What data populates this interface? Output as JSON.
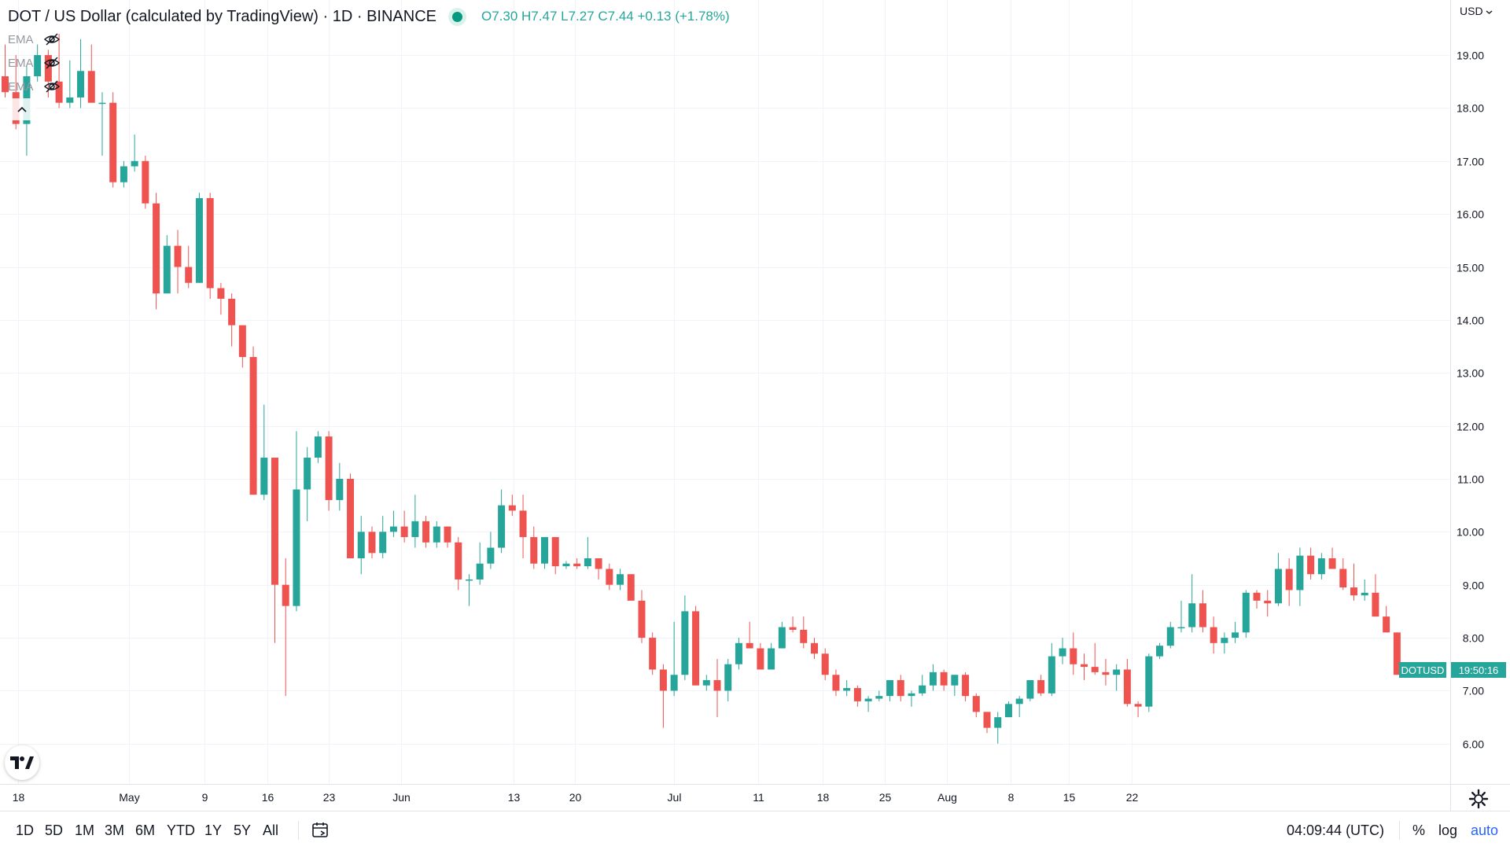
{
  "header": {
    "title": "DOT / US Dollar (calculated by TradingView) · 1D · BINANCE",
    "ohlc": "O7.30 H7.47 L7.27 C7.44 +0.13 (+1.78%)"
  },
  "indicators": [
    {
      "label": "EMA",
      "icon": "eye-crossed-icon"
    },
    {
      "label": "EMA",
      "icon": "eye-crossed-icon"
    },
    {
      "label": "EMA",
      "icon": "eye-crossed-icon"
    }
  ],
  "currency_selector": "USD",
  "price_label": {
    "symbol": "DOTUSD",
    "countdown": "19:50:16",
    "color": "#26a69a"
  },
  "bottom_bar": {
    "ranges": [
      "1D",
      "5D",
      "1M",
      "3M",
      "6M",
      "YTD",
      "1Y",
      "5Y",
      "All"
    ],
    "clock": "04:09:44 (UTC)",
    "options": [
      "%",
      "log",
      "auto"
    ]
  },
  "colors": {
    "up": "#26a69a",
    "down": "#ef5350",
    "grid": "#f0f3fa"
  },
  "chart_data": {
    "type": "candlestick",
    "symbol": "DOTUSD",
    "interval": "1D",
    "exchange": "BINANCE",
    "y_axis": {
      "ticks": [
        6,
        7,
        8,
        9,
        10,
        11,
        12,
        13,
        14,
        15,
        16,
        17,
        18,
        19
      ],
      "range": [
        5.24,
        20.04
      ],
      "side": "right"
    },
    "x_axis": {
      "labels": [
        "18",
        "May",
        "9",
        "16",
        "23",
        "Jun",
        "13",
        "20",
        "Jul",
        "11",
        "18",
        "25",
        "Aug",
        "8",
        "15",
        "22"
      ]
    },
    "grid": true,
    "candles": [
      {
        "o": 18.6,
        "h": 19.2,
        "l": 18.2,
        "c": 18.3
      },
      {
        "o": 18.3,
        "h": 19.0,
        "l": 17.6,
        "c": 17.7
      },
      {
        "o": 17.7,
        "h": 18.8,
        "l": 17.1,
        "c": 18.6
      },
      {
        "o": 18.6,
        "h": 19.2,
        "l": 18.5,
        "c": 19.0
      },
      {
        "o": 19.0,
        "h": 19.1,
        "l": 18.2,
        "c": 18.5
      },
      {
        "o": 18.5,
        "h": 19.4,
        "l": 18.0,
        "c": 18.1
      },
      {
        "o": 18.1,
        "h": 18.9,
        "l": 18.0,
        "c": 18.2
      },
      {
        "o": 18.2,
        "h": 19.3,
        "l": 18.0,
        "c": 18.7
      },
      {
        "o": 18.7,
        "h": 19.2,
        "l": 18.1,
        "c": 18.1
      },
      {
        "o": 18.1,
        "h": 18.3,
        "l": 17.1,
        "c": 18.1
      },
      {
        "o": 18.1,
        "h": 18.3,
        "l": 16.5,
        "c": 16.6
      },
      {
        "o": 16.6,
        "h": 17.0,
        "l": 16.5,
        "c": 16.9
      },
      {
        "o": 16.9,
        "h": 17.5,
        "l": 16.8,
        "c": 17.0
      },
      {
        "o": 17.0,
        "h": 17.1,
        "l": 16.1,
        "c": 16.2
      },
      {
        "o": 16.2,
        "h": 16.4,
        "l": 14.2,
        "c": 14.5
      },
      {
        "o": 14.5,
        "h": 15.6,
        "l": 14.5,
        "c": 15.4
      },
      {
        "o": 15.4,
        "h": 15.7,
        "l": 14.5,
        "c": 15.0
      },
      {
        "o": 15.0,
        "h": 15.4,
        "l": 14.6,
        "c": 14.7
      },
      {
        "o": 14.7,
        "h": 16.4,
        "l": 14.7,
        "c": 16.3
      },
      {
        "o": 16.3,
        "h": 16.4,
        "l": 14.4,
        "c": 14.6
      },
      {
        "o": 14.6,
        "h": 14.7,
        "l": 14.1,
        "c": 14.4
      },
      {
        "o": 14.4,
        "h": 14.5,
        "l": 13.5,
        "c": 13.9
      },
      {
        "o": 13.9,
        "h": 13.9,
        "l": 13.1,
        "c": 13.3
      },
      {
        "o": 13.3,
        "h": 13.5,
        "l": 10.7,
        "c": 10.7
      },
      {
        "o": 10.7,
        "h": 12.4,
        "l": 10.6,
        "c": 11.4
      },
      {
        "o": 11.4,
        "h": 11.4,
        "l": 7.9,
        "c": 9.0
      },
      {
        "o": 9.0,
        "h": 9.5,
        "l": 6.9,
        "c": 8.6
      },
      {
        "o": 8.6,
        "h": 11.9,
        "l": 8.5,
        "c": 10.8
      },
      {
        "o": 10.8,
        "h": 11.6,
        "l": 10.2,
        "c": 11.4
      },
      {
        "o": 11.4,
        "h": 11.9,
        "l": 11.3,
        "c": 11.8
      },
      {
        "o": 11.8,
        "h": 11.9,
        "l": 10.4,
        "c": 10.6
      },
      {
        "o": 10.6,
        "h": 11.3,
        "l": 10.4,
        "c": 11.0
      },
      {
        "o": 11.0,
        "h": 11.1,
        "l": 9.5,
        "c": 9.5
      },
      {
        "o": 9.5,
        "h": 10.3,
        "l": 9.2,
        "c": 10.0
      },
      {
        "o": 10.0,
        "h": 10.1,
        "l": 9.5,
        "c": 9.6
      },
      {
        "o": 9.6,
        "h": 10.3,
        "l": 9.5,
        "c": 10.0
      },
      {
        "o": 10.0,
        "h": 10.4,
        "l": 9.9,
        "c": 10.1
      },
      {
        "o": 10.1,
        "h": 10.4,
        "l": 9.8,
        "c": 9.9
      },
      {
        "o": 9.9,
        "h": 10.7,
        "l": 9.7,
        "c": 10.2
      },
      {
        "o": 10.2,
        "h": 10.3,
        "l": 9.7,
        "c": 9.8
      },
      {
        "o": 9.8,
        "h": 10.2,
        "l": 9.7,
        "c": 10.1
      },
      {
        "o": 10.1,
        "h": 10.1,
        "l": 9.7,
        "c": 9.8
      },
      {
        "o": 9.8,
        "h": 9.9,
        "l": 8.9,
        "c": 9.1
      },
      {
        "o": 9.1,
        "h": 9.2,
        "l": 8.6,
        "c": 9.1
      },
      {
        "o": 9.1,
        "h": 9.8,
        "l": 9.0,
        "c": 9.4
      },
      {
        "o": 9.4,
        "h": 10.0,
        "l": 9.3,
        "c": 9.7
      },
      {
        "o": 9.7,
        "h": 10.8,
        "l": 9.6,
        "c": 10.5
      },
      {
        "o": 10.5,
        "h": 10.7,
        "l": 10.3,
        "c": 10.4
      },
      {
        "o": 10.4,
        "h": 10.7,
        "l": 9.5,
        "c": 9.9
      },
      {
        "o": 9.9,
        "h": 10.1,
        "l": 9.3,
        "c": 9.4
      },
      {
        "o": 9.4,
        "h": 9.9,
        "l": 9.3,
        "c": 9.9
      },
      {
        "o": 9.9,
        "h": 9.9,
        "l": 9.2,
        "c": 9.35
      },
      {
        "o": 9.35,
        "h": 9.45,
        "l": 9.3,
        "c": 9.4
      },
      {
        "o": 9.4,
        "h": 9.5,
        "l": 9.3,
        "c": 9.35
      },
      {
        "o": 9.35,
        "h": 9.9,
        "l": 9.3,
        "c": 9.5
      },
      {
        "o": 9.5,
        "h": 9.5,
        "l": 9.1,
        "c": 9.3
      },
      {
        "o": 9.3,
        "h": 9.4,
        "l": 8.9,
        "c": 9.0
      },
      {
        "o": 9.0,
        "h": 9.3,
        "l": 8.9,
        "c": 9.2
      },
      {
        "o": 9.2,
        "h": 9.2,
        "l": 8.7,
        "c": 8.7
      },
      {
        "o": 8.7,
        "h": 8.9,
        "l": 7.9,
        "c": 8.0
      },
      {
        "o": 8.0,
        "h": 8.1,
        "l": 7.3,
        "c": 7.4
      },
      {
        "o": 7.4,
        "h": 7.5,
        "l": 6.3,
        "c": 7.0
      },
      {
        "o": 7.0,
        "h": 8.3,
        "l": 6.9,
        "c": 7.3
      },
      {
        "o": 7.3,
        "h": 8.8,
        "l": 7.2,
        "c": 8.5
      },
      {
        "o": 8.5,
        "h": 8.6,
        "l": 7.1,
        "c": 7.1
      },
      {
        "o": 7.1,
        "h": 7.3,
        "l": 7.0,
        "c": 7.2
      },
      {
        "o": 7.2,
        "h": 7.6,
        "l": 6.5,
        "c": 7.0
      },
      {
        "o": 7.0,
        "h": 7.6,
        "l": 6.8,
        "c": 7.5
      },
      {
        "o": 7.5,
        "h": 8.0,
        "l": 7.4,
        "c": 7.9
      },
      {
        "o": 7.9,
        "h": 8.3,
        "l": 7.8,
        "c": 7.8
      },
      {
        "o": 7.8,
        "h": 7.9,
        "l": 7.4,
        "c": 7.4
      },
      {
        "o": 7.4,
        "h": 7.9,
        "l": 7.4,
        "c": 7.8
      },
      {
        "o": 7.8,
        "h": 8.3,
        "l": 7.8,
        "c": 8.2
      },
      {
        "o": 8.2,
        "h": 8.4,
        "l": 8.1,
        "c": 8.15
      },
      {
        "o": 8.15,
        "h": 8.4,
        "l": 7.8,
        "c": 7.9
      },
      {
        "o": 7.9,
        "h": 8.0,
        "l": 7.6,
        "c": 7.7
      },
      {
        "o": 7.7,
        "h": 7.8,
        "l": 7.2,
        "c": 7.3
      },
      {
        "o": 7.3,
        "h": 7.4,
        "l": 6.9,
        "c": 7.0
      },
      {
        "o": 7.0,
        "h": 7.2,
        "l": 6.9,
        "c": 7.05
      },
      {
        "o": 7.05,
        "h": 7.1,
        "l": 6.7,
        "c": 6.8
      },
      {
        "o": 6.8,
        "h": 6.9,
        "l": 6.6,
        "c": 6.85
      },
      {
        "o": 6.85,
        "h": 7.0,
        "l": 6.8,
        "c": 6.9
      },
      {
        "o": 6.9,
        "h": 7.2,
        "l": 6.8,
        "c": 7.2
      },
      {
        "o": 7.2,
        "h": 7.3,
        "l": 6.8,
        "c": 6.9
      },
      {
        "o": 6.9,
        "h": 7.0,
        "l": 6.7,
        "c": 6.95
      },
      {
        "o": 6.95,
        "h": 7.3,
        "l": 6.9,
        "c": 7.1
      },
      {
        "o": 7.1,
        "h": 7.5,
        "l": 7.0,
        "c": 7.35
      },
      {
        "o": 7.35,
        "h": 7.4,
        "l": 7.0,
        "c": 7.1
      },
      {
        "o": 7.1,
        "h": 7.3,
        "l": 6.9,
        "c": 7.3
      },
      {
        "o": 7.3,
        "h": 7.35,
        "l": 6.8,
        "c": 6.9
      },
      {
        "o": 6.9,
        "h": 6.95,
        "l": 6.5,
        "c": 6.6
      },
      {
        "o": 6.6,
        "h": 6.6,
        "l": 6.2,
        "c": 6.3
      },
      {
        "o": 6.3,
        "h": 6.6,
        "l": 6.0,
        "c": 6.5
      },
      {
        "o": 6.5,
        "h": 6.8,
        "l": 6.5,
        "c": 6.75
      },
      {
        "o": 6.75,
        "h": 6.9,
        "l": 6.5,
        "c": 6.85
      },
      {
        "o": 6.85,
        "h": 7.2,
        "l": 6.8,
        "c": 7.2
      },
      {
        "o": 7.2,
        "h": 7.3,
        "l": 6.9,
        "c": 6.95
      },
      {
        "o": 6.95,
        "h": 7.9,
        "l": 6.9,
        "c": 7.65
      },
      {
        "o": 7.65,
        "h": 8.0,
        "l": 7.5,
        "c": 7.8
      },
      {
        "o": 7.8,
        "h": 8.1,
        "l": 7.3,
        "c": 7.5
      },
      {
        "o": 7.5,
        "h": 7.7,
        "l": 7.2,
        "c": 7.45
      },
      {
        "o": 7.45,
        "h": 7.9,
        "l": 7.3,
        "c": 7.35
      },
      {
        "o": 7.35,
        "h": 7.6,
        "l": 7.1,
        "c": 7.3
      },
      {
        "o": 7.3,
        "h": 7.5,
        "l": 7.0,
        "c": 7.4
      },
      {
        "o": 7.4,
        "h": 7.6,
        "l": 6.7,
        "c": 6.75
      },
      {
        "o": 6.75,
        "h": 6.8,
        "l": 6.5,
        "c": 6.7
      },
      {
        "o": 6.7,
        "h": 7.7,
        "l": 6.6,
        "c": 7.65
      },
      {
        "o": 7.65,
        "h": 7.9,
        "l": 7.6,
        "c": 7.85
      },
      {
        "o": 7.85,
        "h": 8.3,
        "l": 7.8,
        "c": 8.2
      },
      {
        "o": 8.2,
        "h": 8.7,
        "l": 8.1,
        "c": 8.2
      },
      {
        "o": 8.2,
        "h": 9.2,
        "l": 8.1,
        "c": 8.65
      },
      {
        "o": 8.65,
        "h": 8.9,
        "l": 8.1,
        "c": 8.2
      },
      {
        "o": 8.2,
        "h": 8.4,
        "l": 7.7,
        "c": 7.9
      },
      {
        "o": 7.9,
        "h": 8.1,
        "l": 7.7,
        "c": 8.0
      },
      {
        "o": 8.0,
        "h": 8.3,
        "l": 7.9,
        "c": 8.1
      },
      {
        "o": 8.1,
        "h": 8.9,
        "l": 8.0,
        "c": 8.85
      },
      {
        "o": 8.85,
        "h": 8.9,
        "l": 8.55,
        "c": 8.7
      },
      {
        "o": 8.7,
        "h": 8.9,
        "l": 8.4,
        "c": 8.65
      },
      {
        "o": 8.65,
        "h": 9.6,
        "l": 8.6,
        "c": 9.3
      },
      {
        "o": 9.3,
        "h": 9.5,
        "l": 8.6,
        "c": 8.9
      },
      {
        "o": 8.9,
        "h": 9.7,
        "l": 8.6,
        "c": 9.55
      },
      {
        "o": 9.55,
        "h": 9.7,
        "l": 9.1,
        "c": 9.2
      },
      {
        "o": 9.2,
        "h": 9.6,
        "l": 9.1,
        "c": 9.5
      },
      {
        "o": 9.5,
        "h": 9.7,
        "l": 9.3,
        "c": 9.3
      },
      {
        "o": 9.3,
        "h": 9.5,
        "l": 8.9,
        "c": 8.95
      },
      {
        "o": 8.95,
        "h": 9.4,
        "l": 8.7,
        "c": 8.8
      },
      {
        "o": 8.8,
        "h": 9.1,
        "l": 8.7,
        "c": 8.85
      },
      {
        "o": 8.85,
        "h": 9.2,
        "l": 8.4,
        "c": 8.4
      },
      {
        "o": 8.4,
        "h": 8.6,
        "l": 8.1,
        "c": 8.1
      },
      {
        "o": 8.1,
        "h": 8.1,
        "l": 7.3,
        "c": 7.3
      },
      {
        "o": 7.3,
        "h": 7.47,
        "l": 7.27,
        "c": 7.44
      }
    ]
  }
}
